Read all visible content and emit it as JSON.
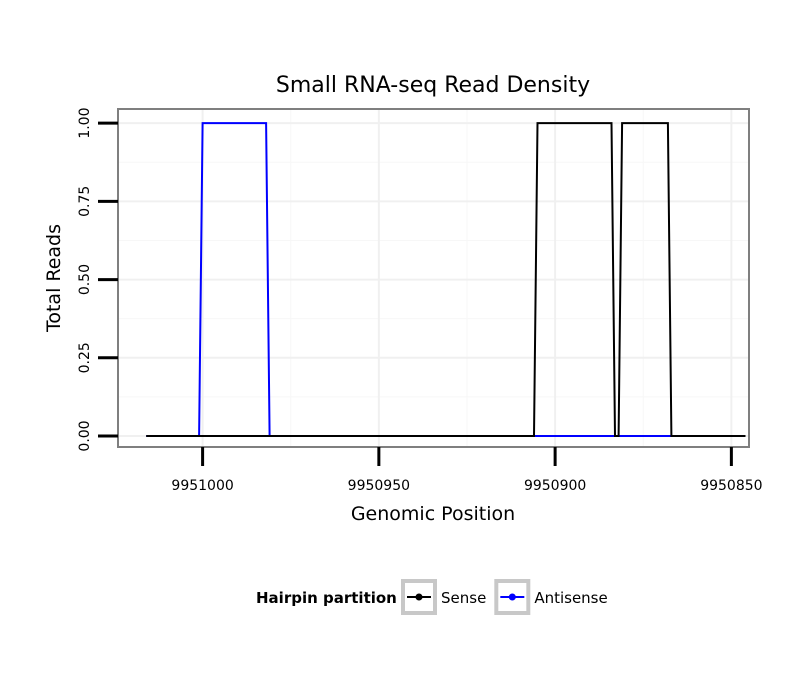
{
  "chart_data": {
    "type": "line",
    "title": "Small RNA-seq Read Density",
    "xlabel": "Genomic Position",
    "ylabel": "Total Reads",
    "x_reversed": true,
    "xlim": [
      9951024,
      9950845
    ],
    "ylim": [
      -0.035,
      1.045
    ],
    "x_ticks": [
      9951000,
      9950950,
      9950900,
      9950850
    ],
    "x_tick_labels": [
      "9951000",
      "9950950",
      "9950900",
      "9950850"
    ],
    "y_ticks": [
      0,
      0.25,
      0.5,
      0.75,
      1
    ],
    "y_tick_labels": [
      "0.00",
      "0.25",
      "0.50",
      "0.75",
      "1.00"
    ],
    "grid": true,
    "legend": {
      "title": "Hairpin partition",
      "position": "bottom"
    },
    "series": [
      {
        "name": "Sense",
        "color": "#000000",
        "x": [
          9951016,
          9950906,
          9950905,
          9950884,
          9950883,
          9950882,
          9950881,
          9950868,
          9950867,
          9950846
        ],
        "y": [
          0,
          0,
          1,
          1,
          0,
          0,
          1,
          1,
          0,
          0
        ]
      },
      {
        "name": "Antisense",
        "color": "#0000ff",
        "x": [
          9951016,
          9951001,
          9951000,
          9950982,
          9950981,
          9950905,
          9950846
        ],
        "y": [
          0,
          0,
          1,
          1,
          0,
          0,
          0
        ]
      }
    ]
  }
}
